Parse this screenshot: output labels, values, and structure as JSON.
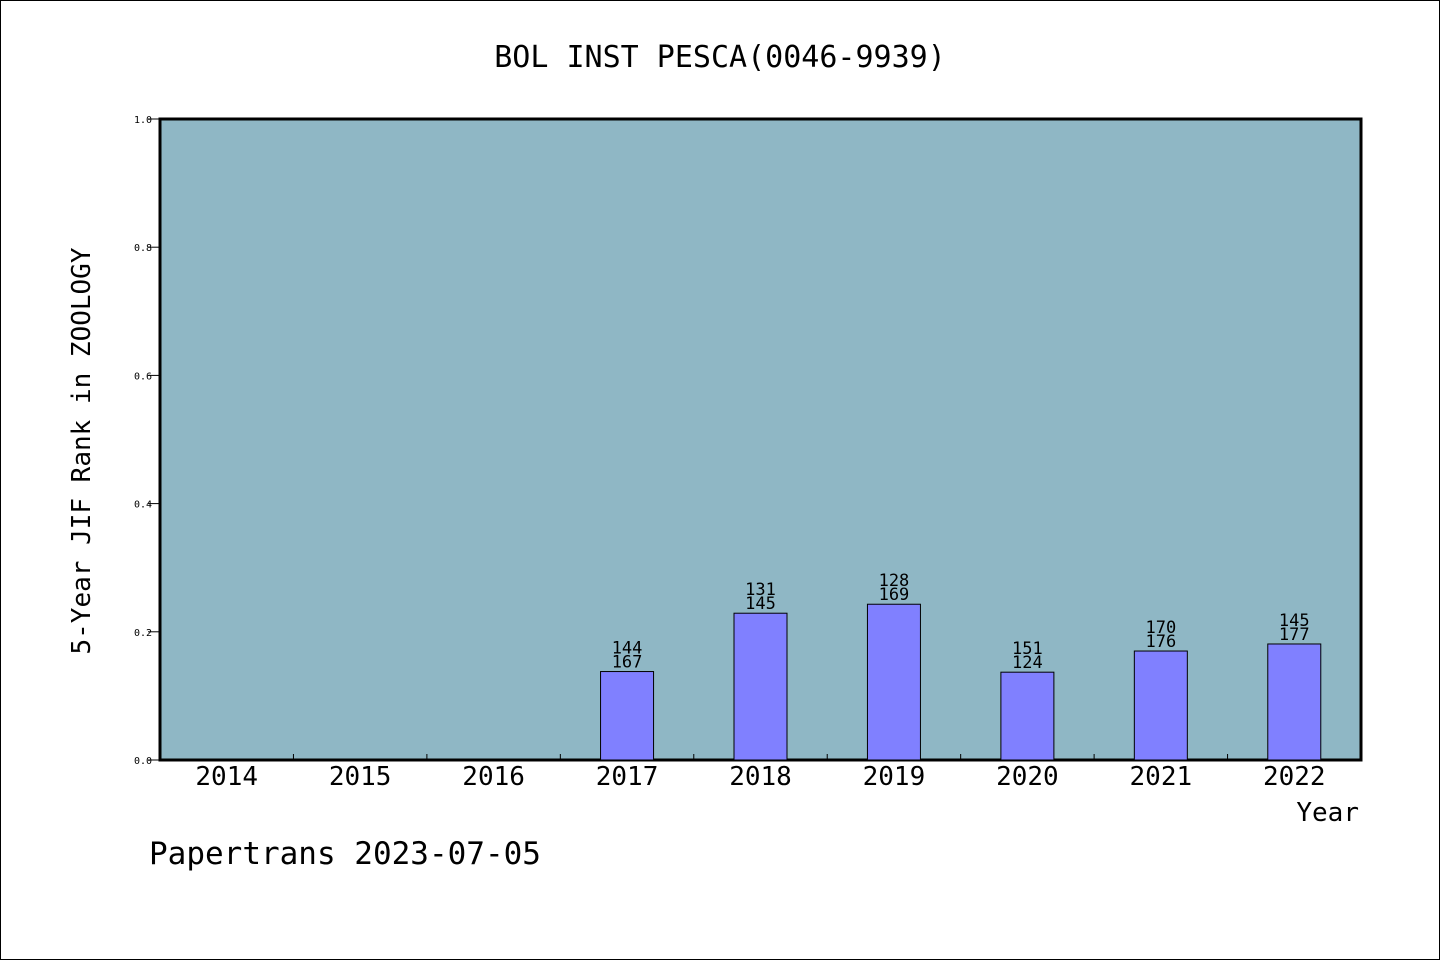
{
  "chart_data": {
    "type": "bar",
    "title": "BOL INST PESCA(0046-9939)",
    "xlabel": "Year",
    "ylabel": "5-Year JIF Rank in ZOOLOGY",
    "ylim": [
      0,
      1.0
    ],
    "yticks": [
      "0.0",
      "0.2",
      "0.4",
      "0.6",
      "0.8",
      "1.0"
    ],
    "categories": [
      "2014",
      "2015",
      "2016",
      "2017",
      "2018",
      "2019",
      "2020",
      "2021",
      "2022"
    ],
    "values": [
      null,
      null,
      null,
      0.138,
      0.229,
      0.243,
      0.137,
      0.17,
      0.181
    ],
    "bar_labels_top": [
      "",
      "",
      "",
      "144",
      "131",
      "128",
      "151",
      "170",
      "145"
    ],
    "bar_labels_bottom": [
      "",
      "",
      "",
      "167",
      "145",
      "169",
      "124",
      "176",
      "177"
    ],
    "grid": false,
    "colors": {
      "plot_background": "#8fb7c5",
      "bar_fill": "#8080ff",
      "bar_stroke": "#000000"
    }
  },
  "footer": "Papertrans 2023-07-05"
}
